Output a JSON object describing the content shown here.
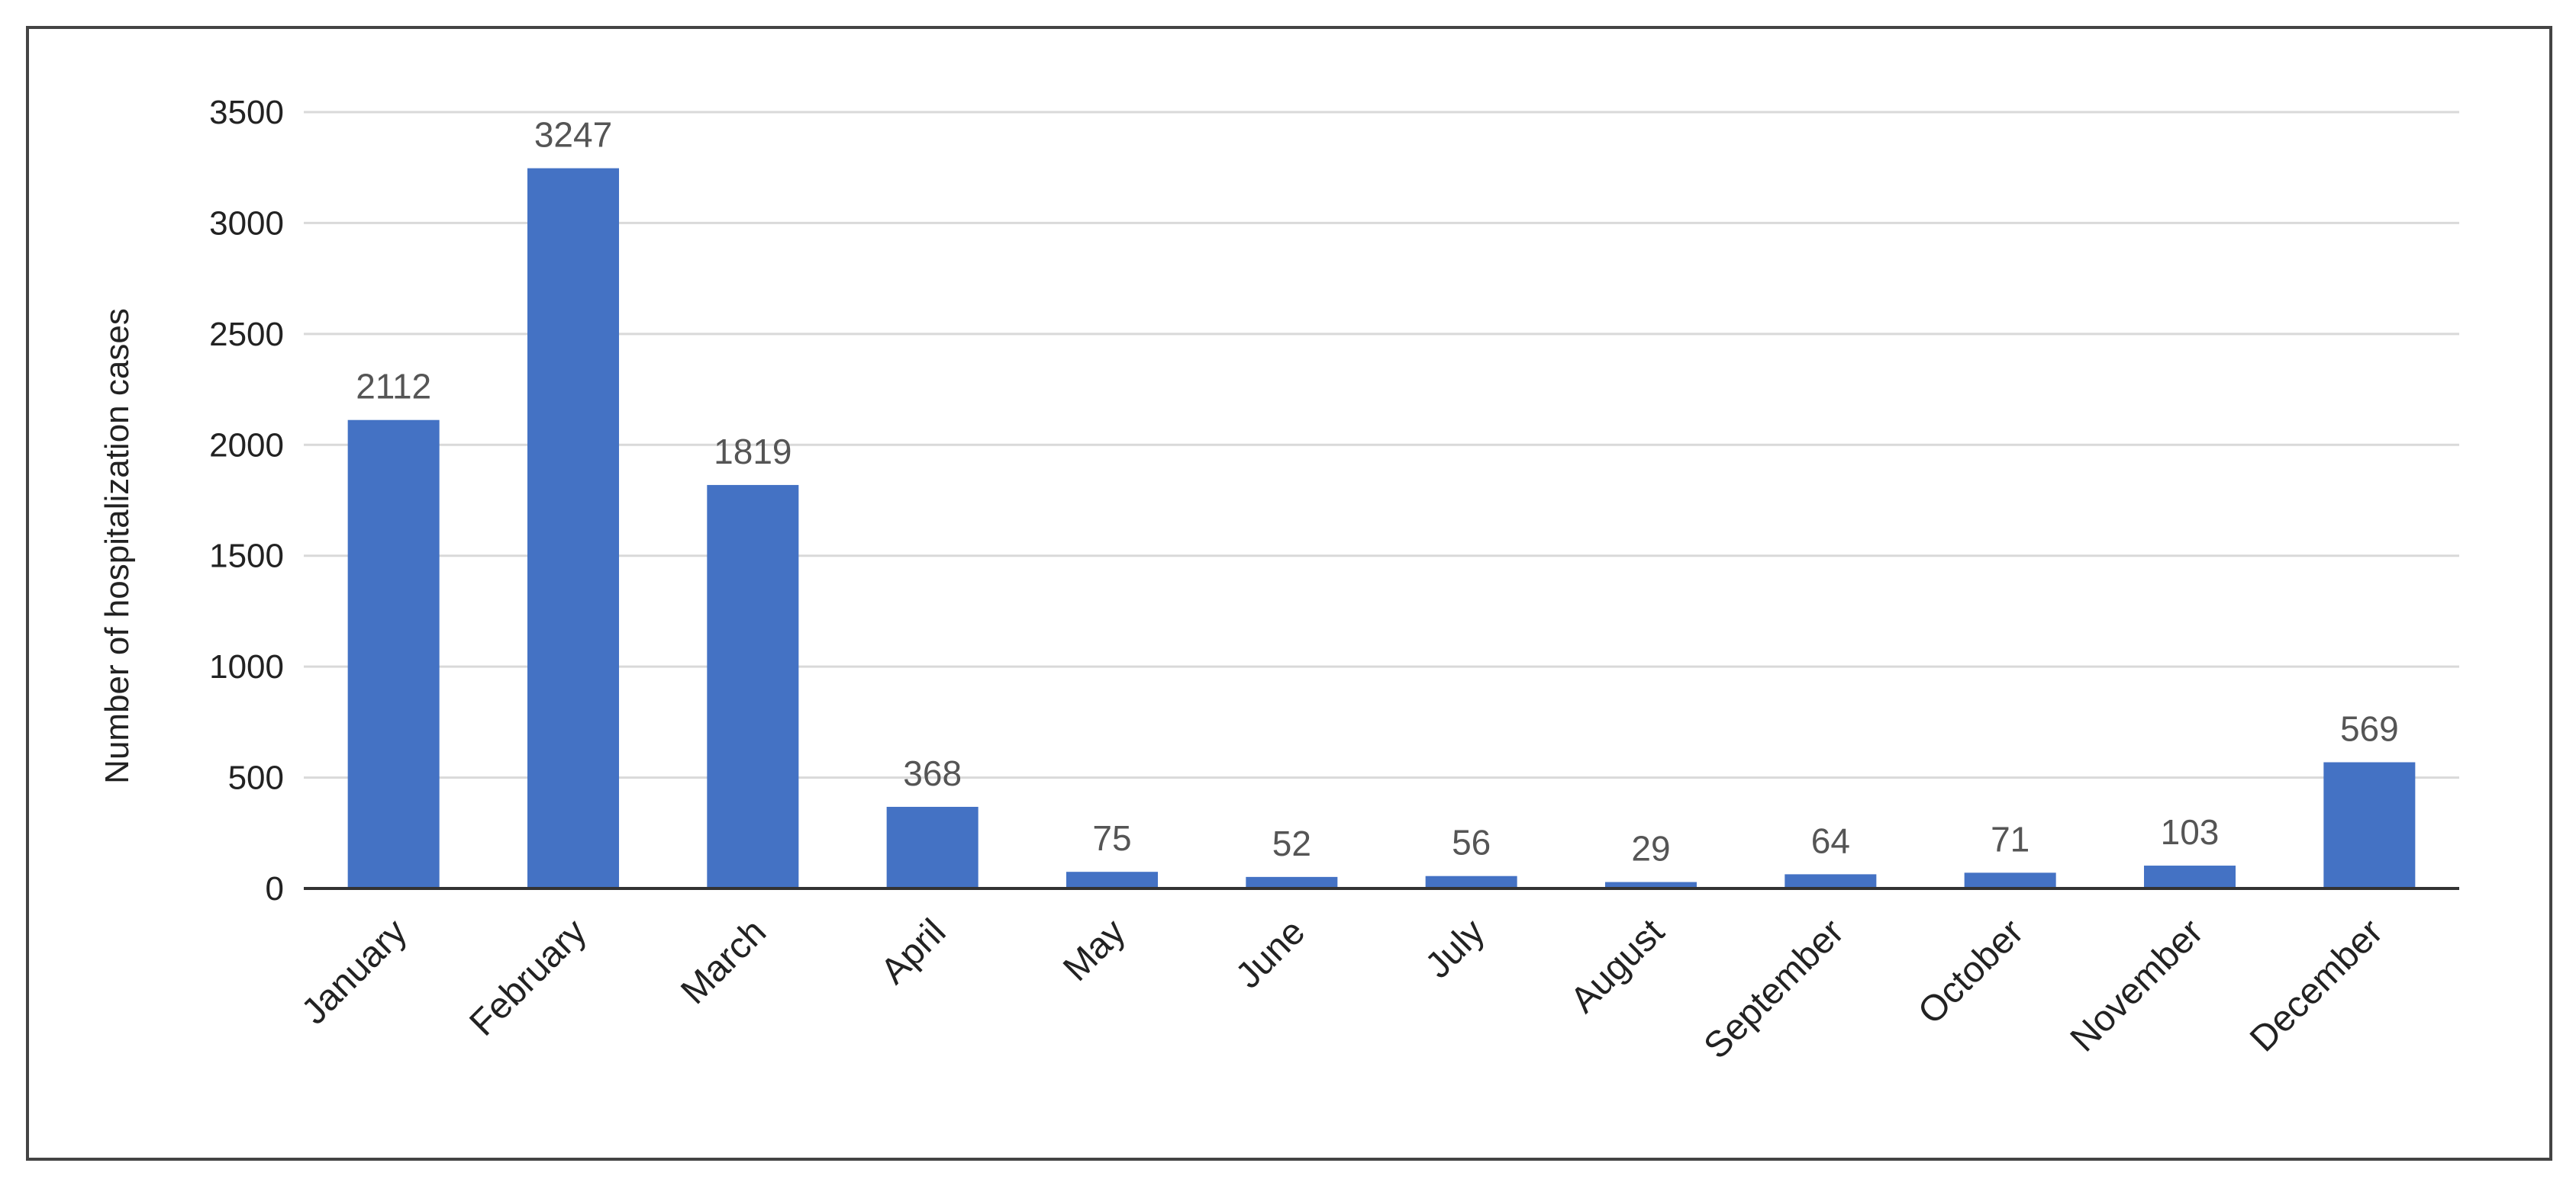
{
  "chart_data": {
    "type": "bar",
    "title": "",
    "xlabel": "",
    "ylabel": "Number of hospitalization cases",
    "categories": [
      "January",
      "February",
      "March",
      "April",
      "May",
      "June",
      "July",
      "August",
      "September",
      "October",
      "November",
      "December"
    ],
    "values": [
      2112,
      3247,
      1819,
      368,
      75,
      52,
      56,
      29,
      64,
      71,
      103,
      569
    ],
    "data_labels": [
      "2112",
      "3247",
      "1819",
      "368",
      "75",
      "52",
      "56",
      "29",
      "64",
      "71",
      "103",
      "569"
    ],
    "yticks": [
      "0",
      "500",
      "1000",
      "1500",
      "2000",
      "2500",
      "3000",
      "3500"
    ],
    "ylim": [
      0,
      3500
    ],
    "grid": true,
    "legend": "none",
    "colors": {
      "bar": "#4472c4",
      "grid": "#d9d9d9",
      "axis": "#333333",
      "label": "#555555"
    }
  }
}
